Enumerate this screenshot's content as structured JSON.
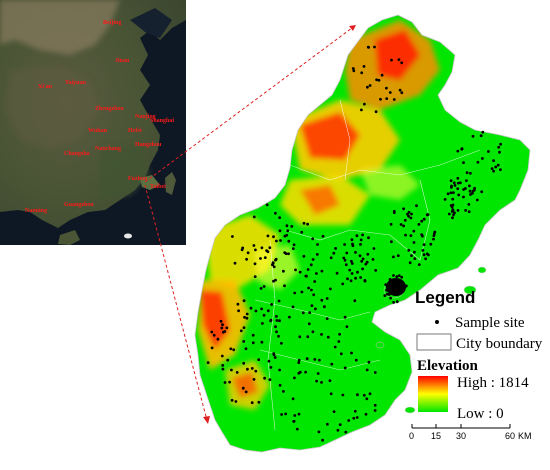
{
  "overview": {
    "city_labels": [
      "Beijing",
      "Jinan",
      "Taiyuan",
      "Xi'an",
      "Zhengzhou",
      "Nanjing",
      "Shanghai",
      "Hefei",
      "Wuhan",
      "Hangzhou",
      "Changsha",
      "Nanchang",
      "Fuzhou",
      "Taibei",
      "Guangzhou",
      "Nanning"
    ]
  },
  "legend": {
    "title": "Legend",
    "sample_site": "Sample site",
    "city_boundary": "City boundary",
    "elevation_title": "Elevation",
    "high_label": "High : 1814",
    "low_label": "Low : 0"
  },
  "scalebar": {
    "ticks": [
      "0",
      "15",
      "30",
      "60"
    ],
    "unit": "KM"
  },
  "colors": {
    "high": "#ff0000",
    "mid": "#ffff00",
    "low": "#00e600",
    "callout": "#e02020",
    "sea": "#0d1a2a"
  }
}
